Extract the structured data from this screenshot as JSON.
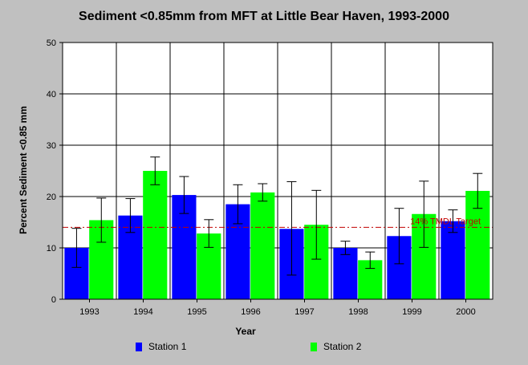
{
  "chart_data": {
    "type": "bar",
    "title": "Sediment <0.85mm from MFT at Little Bear Haven, 1993-2000",
    "xlabel": "Year",
    "ylabel": "Percent Sediment <0.85 mm",
    "ylim": [
      0,
      50
    ],
    "yticks": [
      "0",
      "10",
      "20",
      "30",
      "40",
      "50"
    ],
    "categories": [
      "1993",
      "1994",
      "1995",
      "1996",
      "1997",
      "1998",
      "1999",
      "2000"
    ],
    "grid": true,
    "legend_position": "bottom",
    "series": [
      {
        "name": "Station 1",
        "color": "#0000ff",
        "values": [
          10.0,
          16.3,
          20.3,
          18.5,
          13.7,
          10.0,
          12.3,
          15.2
        ],
        "error_low": [
          6.2,
          13.0,
          16.7,
          14.7,
          4.7,
          8.7,
          6.9,
          13.0
        ],
        "error_high": [
          13.8,
          19.6,
          23.9,
          22.3,
          22.9,
          11.3,
          17.7,
          17.4
        ]
      },
      {
        "name": "Station 2",
        "color": "#00ff00",
        "values": [
          15.4,
          25.0,
          12.8,
          20.8,
          14.5,
          7.6,
          16.6,
          21.1
        ],
        "error_low": [
          11.1,
          22.3,
          10.1,
          19.1,
          7.8,
          6.0,
          10.1,
          17.7
        ],
        "error_high": [
          19.7,
          27.7,
          15.5,
          22.5,
          21.2,
          9.2,
          23.0,
          24.5
        ]
      }
    ],
    "reference_line": {
      "value": 14,
      "label": "14% TMDL Target",
      "color": "#c00000"
    }
  }
}
